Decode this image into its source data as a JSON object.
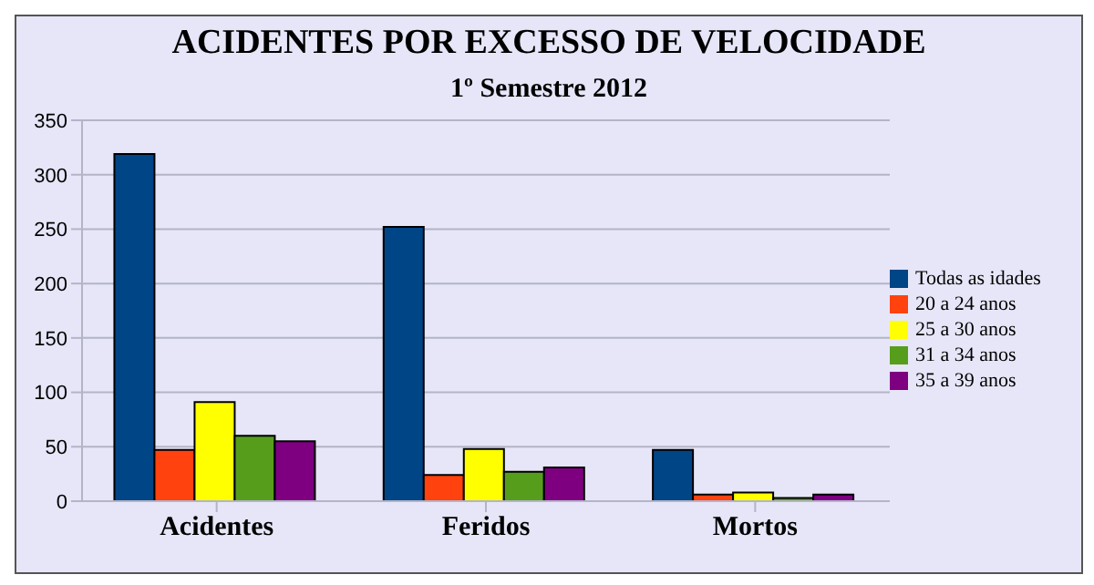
{
  "chart_data": {
    "type": "bar",
    "title": "ACIDENTES POR EXCESSO DE VELOCIDADE",
    "subtitle": "1º Semestre 2012",
    "categories": [
      "Acidentes",
      "Feridos",
      "Mortos"
    ],
    "series": [
      {
        "name": "Todas as idades",
        "color": "#004586",
        "values": [
          319,
          252,
          47
        ]
      },
      {
        "name": "20 a 24 anos",
        "color": "#ff420e",
        "values": [
          47,
          24,
          6
        ]
      },
      {
        "name": "25 a 30 anos",
        "color": "#ffff00",
        "values": [
          91,
          48,
          8
        ]
      },
      {
        "name": "31 a 34 anos",
        "color": "#579d1c",
        "values": [
          60,
          27,
          3
        ]
      },
      {
        "name": "35 a 39 anos",
        "color": "#7e0080",
        "values": [
          55,
          31,
          6
        ]
      }
    ],
    "ylim": [
      0,
      350
    ],
    "yticks": [
      0,
      50,
      100,
      150,
      200,
      250,
      300,
      350
    ],
    "grid": "y",
    "legend": "right"
  }
}
